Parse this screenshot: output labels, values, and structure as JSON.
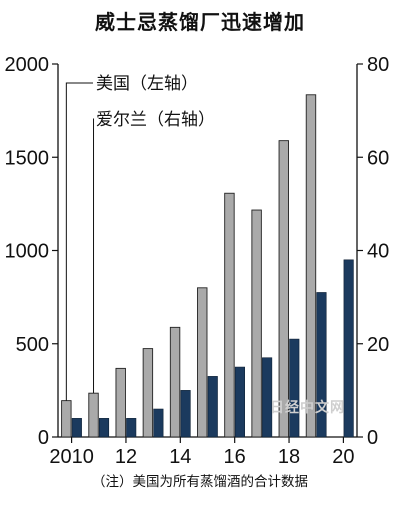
{
  "chart_data": {
    "type": "bar",
    "title": "威士忌蒸馏厂迅速增加",
    "note": "（注）美国为所有蒸馏酒的合计数据",
    "x_tick_labels": [
      "2010",
      "12",
      "14",
      "16",
      "18",
      "20"
    ],
    "categories": [
      2010,
      2011,
      2012,
      2013,
      2014,
      2015,
      2016,
      2017,
      2018,
      2019,
      2020
    ],
    "left_axis": {
      "ylim": [
        0,
        2000
      ],
      "ticks": [
        "0",
        "500",
        "1000",
        "1500",
        "2000"
      ]
    },
    "right_axis": {
      "ylim": [
        0,
        80
      ],
      "ticks": [
        "0",
        "20",
        "40",
        "60",
        "80"
      ]
    },
    "series": [
      {
        "name": "美国（左轴）",
        "axis": "left",
        "color": "#aaaaaa",
        "values": [
          195,
          235,
          368,
          474,
          588,
          800,
          1307,
          1217,
          1589,
          1835,
          null
        ]
      },
      {
        "name": "爱尔兰（右轴）",
        "axis": "right",
        "color": "#1b3a5e",
        "values": [
          4,
          4,
          4,
          6,
          10,
          13,
          15,
          17,
          21,
          31,
          38
        ]
      }
    ],
    "grid": false,
    "legend": "top-left"
  },
  "watermark": "日经中文网"
}
